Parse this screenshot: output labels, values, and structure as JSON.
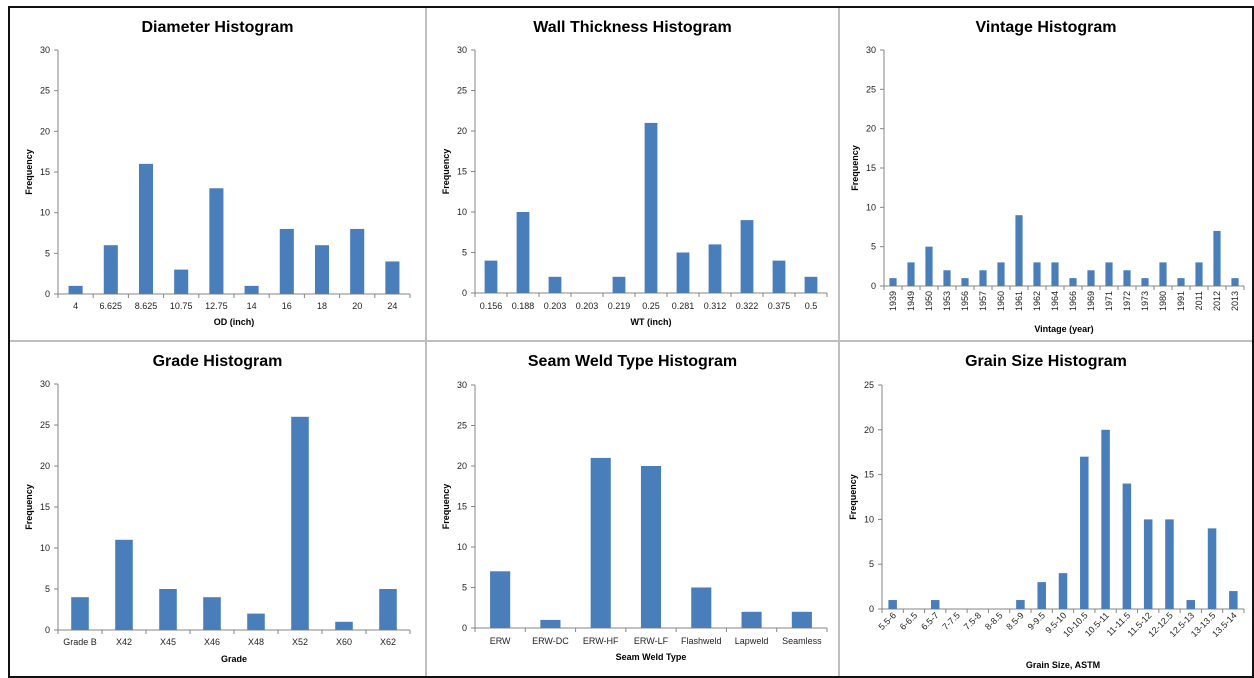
{
  "chart_data": [
    {
      "type": "bar",
      "title": "Diameter Histogram",
      "xlabel": "OD (inch)",
      "ylabel": "Frequency",
      "ylim": [
        0,
        30
      ],
      "yticks": [
        0,
        5,
        10,
        15,
        20,
        25,
        30
      ],
      "categories": [
        "4",
        "6.625",
        "8.625",
        "10.75",
        "12.75",
        "14",
        "16",
        "18",
        "20",
        "24"
      ],
      "values": [
        1,
        6,
        16,
        3,
        13,
        1,
        8,
        6,
        8,
        4
      ],
      "tick_rotation": 0,
      "grid": false
    },
    {
      "type": "bar",
      "title": "Wall Thickness Histogram",
      "xlabel": "WT (inch)",
      "ylabel": "Frequency",
      "ylim": [
        0,
        30
      ],
      "yticks": [
        0,
        5,
        10,
        15,
        20,
        25,
        30
      ],
      "categories": [
        "0.156",
        "0.188",
        "0.203",
        "0.203",
        "0.219",
        "0.25",
        "0.281",
        "0.312",
        "0.322",
        "0.375",
        "0.5"
      ],
      "values": [
        4,
        10,
        2,
        0,
        2,
        21,
        5,
        6,
        9,
        4,
        2
      ],
      "tick_rotation": 0,
      "grid": false
    },
    {
      "type": "bar",
      "title": "Vintage Histogram",
      "xlabel": "Vintage (year)",
      "ylabel": "Frequency",
      "ylim": [
        0,
        30
      ],
      "yticks": [
        0,
        5,
        10,
        15,
        20,
        25,
        30
      ],
      "categories": [
        "1939",
        "1949",
        "1950",
        "1953",
        "1956",
        "1957",
        "1960",
        "1961",
        "1962",
        "1964",
        "1966",
        "1969",
        "1971",
        "1972",
        "1973",
        "1980",
        "1991",
        "2011",
        "2012",
        "2013"
      ],
      "values": [
        1,
        3,
        5,
        2,
        1,
        2,
        3,
        9,
        3,
        3,
        1,
        2,
        3,
        2,
        1,
        3,
        1,
        3,
        7,
        1
      ],
      "tick_rotation": -90,
      "grid": false
    },
    {
      "type": "bar",
      "title": "Grade Histogram",
      "xlabel": "Grade",
      "ylabel": "Frequency",
      "ylim": [
        0,
        30
      ],
      "yticks": [
        0,
        5,
        10,
        15,
        20,
        25,
        30
      ],
      "categories": [
        "Grade B",
        "X42",
        "X45",
        "X46",
        "X48",
        "X52",
        "X60",
        "X62"
      ],
      "values": [
        4,
        11,
        5,
        4,
        2,
        26,
        1,
        5
      ],
      "tick_rotation": 0,
      "grid": false
    },
    {
      "type": "bar",
      "title": "Seam Weld Type Histogram",
      "xlabel": "Seam Weld Type",
      "ylabel": "Frequency",
      "ylim": [
        0,
        30
      ],
      "yticks": [
        0,
        5,
        10,
        15,
        20,
        25,
        30
      ],
      "categories": [
        "ERW",
        "ERW-DC",
        "ERW-HF",
        "ERW-LF",
        "Flashweld",
        "Lapweld",
        "Seamless"
      ],
      "values": [
        7,
        1,
        21,
        20,
        5,
        2,
        2
      ],
      "tick_rotation": 0,
      "grid": false
    },
    {
      "type": "bar",
      "title": "Grain Size Histogram",
      "xlabel": "Grain Size, ASTM",
      "ylabel": "Frequency",
      "ylim": [
        0,
        25
      ],
      "yticks": [
        0,
        5,
        10,
        15,
        20,
        25
      ],
      "categories": [
        "5.5-6",
        "6-6.5",
        "6.5-7",
        "7-7.5",
        "7.5-8",
        "8-8.5",
        "8.5-9",
        "9-9.5",
        "9.5-10",
        "10-10.5",
        "10.5-11",
        "11-11.5",
        "11.5-12",
        "12-12.5",
        "12.5-13",
        "13-13.5",
        "13.5-14"
      ],
      "values": [
        1,
        0,
        1,
        0,
        0,
        0,
        1,
        3,
        4,
        17,
        20,
        14,
        10,
        10,
        1,
        9,
        2
      ],
      "tick_rotation": -45,
      "grid": false
    }
  ],
  "colors": {
    "bar": "#4a7ebb",
    "axis": "#868686",
    "frame": "#111111"
  }
}
